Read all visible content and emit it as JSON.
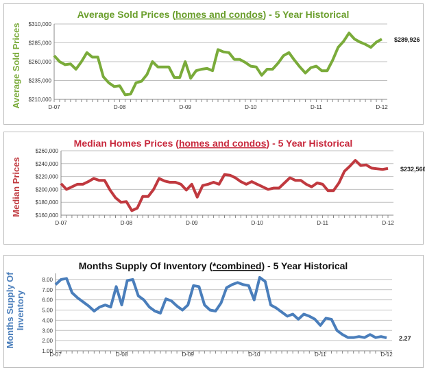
{
  "chart_data": [
    {
      "type": "line",
      "title_pre": "Average Sold Prices (",
      "title_u": "homes and condos",
      "title_post": ") - 5 Year Historical",
      "ylabel": "Average Sold Prices",
      "color": "#7aab3a",
      "title_color": "#6a9e2c",
      "yticks": [
        "$310,000",
        "$285,000",
        "$260,000",
        "$235,000",
        "$210,000"
      ],
      "ylim": [
        210000,
        310000
      ],
      "xticks": [
        "D-07",
        "D-08",
        "D-09",
        "D-10",
        "D-11",
        "D-12"
      ],
      "end_label": "$289,926",
      "values": [
        268000,
        260000,
        256000,
        257000,
        250000,
        260000,
        272000,
        266000,
        266000,
        240000,
        232000,
        227000,
        228000,
        216000,
        217000,
        232000,
        234000,
        243000,
        260000,
        253000,
        253000,
        253000,
        239000,
        239000,
        260000,
        238000,
        248000,
        250000,
        251000,
        248000,
        276000,
        273000,
        272000,
        263000,
        263000,
        259000,
        254000,
        253000,
        242000,
        250000,
        250000,
        258000,
        268000,
        272000,
        262000,
        253000,
        245000,
        252000,
        254000,
        248000,
        248000,
        262000,
        279000,
        287000,
        298000,
        290000,
        286000,
        283000,
        279000,
        286000,
        289926
      ]
    },
    {
      "type": "line",
      "title_pre": "Median Homes Prices (",
      "title_u": "homes and condos",
      "title_post": ") - 5 Year Historical",
      "ylabel": "Median Prices",
      "color": "#c0393f",
      "title_color": "#c8283c",
      "yticks": [
        "$260,000",
        "$240,000",
        "$220,000",
        "$200,000",
        "$180,000",
        "$160,000"
      ],
      "ylim": [
        160000,
        260000
      ],
      "xticks": [
        "D-07",
        "D-08",
        "D-09",
        "D-10",
        "D-11",
        "D-12"
      ],
      "end_label": "$232,566",
      "values": [
        209000,
        200000,
        204000,
        208000,
        208000,
        212000,
        217000,
        214000,
        214000,
        199000,
        187000,
        180000,
        181000,
        167000,
        171000,
        189000,
        189000,
        200000,
        217000,
        213000,
        211000,
        211000,
        208000,
        199000,
        208000,
        188000,
        206000,
        208000,
        211000,
        208000,
        223000,
        222000,
        218000,
        212000,
        208000,
        212000,
        208000,
        204000,
        200000,
        202000,
        202000,
        210000,
        218000,
        214000,
        214000,
        208000,
        204000,
        210000,
        208000,
        198000,
        198000,
        210000,
        228000,
        236000,
        245000,
        237000,
        238000,
        233000,
        232000,
        231000,
        232566
      ]
    },
    {
      "type": "line",
      "title_pre": "Months Supply Of Inventory (",
      "title_u": "*combined",
      "title_post": ") - 5 Year Historical",
      "ylabel": "Months Supply Of Inventory",
      "ylabel_lines": [
        "Months Supply Of",
        "Inventory"
      ],
      "color": "#4a7ebb",
      "title_color": "#111111",
      "yticks": [
        "8.00",
        "7.00",
        "6.00",
        "5.00",
        "4.00",
        "3.00",
        "2.00",
        "1.00"
      ],
      "ylim": [
        1,
        8.6
      ],
      "xticks": [
        "D-07",
        "D-08",
        "D-09",
        "D-10",
        "D-11",
        "D-12"
      ],
      "end_label": "2.27",
      "values": [
        7.5,
        8.0,
        8.1,
        6.7,
        6.2,
        5.8,
        5.4,
        4.9,
        5.3,
        5.5,
        5.3,
        7.3,
        5.5,
        7.9,
        8.0,
        6.4,
        6.0,
        5.3,
        4.9,
        4.7,
        6.1,
        5.9,
        5.4,
        5.0,
        5.5,
        7.4,
        7.3,
        5.5,
        5.0,
        4.9,
        5.7,
        7.2,
        7.5,
        7.7,
        7.5,
        7.4,
        6.0,
        8.2,
        7.8,
        5.5,
        5.2,
        4.8,
        4.4,
        4.6,
        4.1,
        4.6,
        4.4,
        4.1,
        3.5,
        4.2,
        4.1,
        3.0,
        2.6,
        2.3,
        2.3,
        2.4,
        2.3,
        2.6,
        2.3,
        2.4,
        2.27
      ]
    }
  ]
}
